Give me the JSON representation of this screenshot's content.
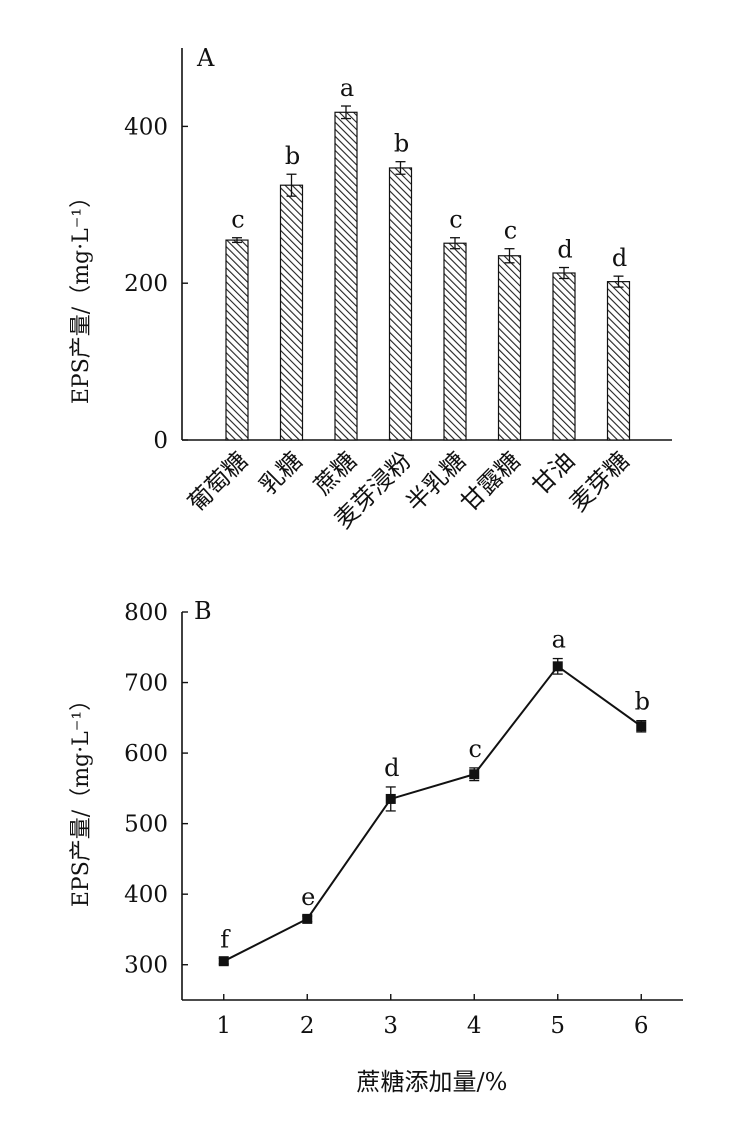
{
  "chart_data": [
    {
      "type": "bar",
      "panel_label": "A",
      "ylabel": "EPS产量/（mg·L⁻¹）",
      "ylim": [
        0,
        500
      ],
      "y_ticks": [
        0,
        200,
        400
      ],
      "categories": [
        "葡萄糖",
        "乳糖",
        "蔗糖",
        "麦芽浸粉",
        "半乳糖",
        "甘露糖",
        "甘油",
        "麦芽糖"
      ],
      "values": [
        255,
        325,
        418,
        347,
        251,
        235,
        213,
        202
      ],
      "errors": [
        3,
        14,
        8,
        8,
        7,
        9,
        7,
        7
      ],
      "significance": [
        "c",
        "b",
        "a",
        "b",
        "c",
        "c",
        "d",
        "d"
      ],
      "fill": "hatched"
    },
    {
      "type": "line",
      "panel_label": "B",
      "xlabel": "蔗糖添加量/%",
      "ylabel": "EPS产量/（mg·L⁻¹）",
      "xlim": [
        0.5,
        6.5
      ],
      "ylim": [
        250,
        800
      ],
      "x_ticks": [
        1,
        2,
        3,
        4,
        5,
        6
      ],
      "y_ticks": [
        300,
        400,
        500,
        600,
        700,
        800
      ],
      "x": [
        1,
        2,
        3,
        4,
        5,
        6
      ],
      "values": [
        305,
        365,
        535,
        570,
        723,
        638
      ],
      "errors": [
        4,
        4,
        17,
        9,
        11,
        8
      ],
      "significance": [
        "f",
        "e",
        "d",
        "c",
        "a",
        "b"
      ]
    }
  ]
}
